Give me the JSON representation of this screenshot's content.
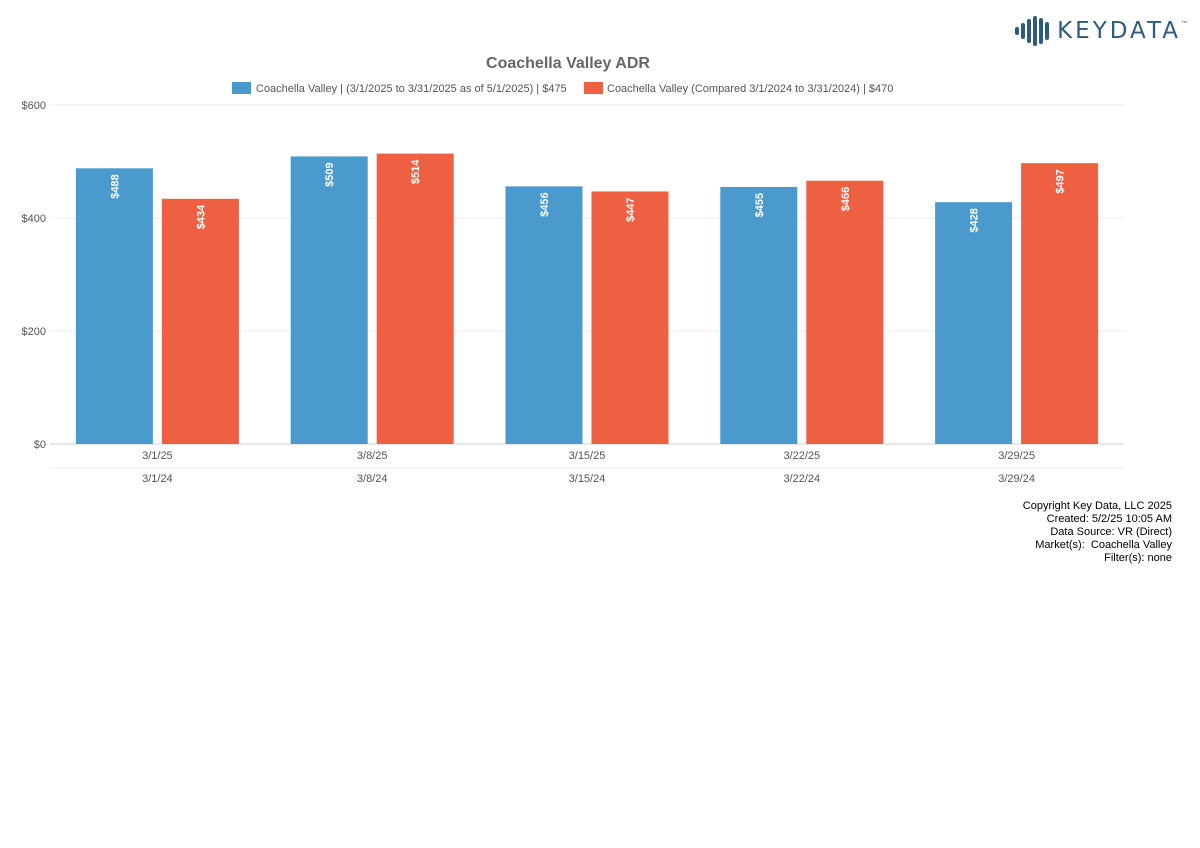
{
  "brand": {
    "name": "KEYDATA",
    "tm": "™",
    "color": "#2e5a80"
  },
  "colors": {
    "current": "#4a9acd",
    "compare": "#ef5f41",
    "grid": "#ececec",
    "axis": "#d0d0d0"
  },
  "chart_data": {
    "type": "bar",
    "title": "Coachella Valley ADR",
    "xlabel": "",
    "ylabel": "",
    "ylim": [
      0,
      600
    ],
    "yticks": [
      0,
      200,
      400,
      600
    ],
    "ytick_labels": [
      "$0",
      "$200",
      "$400",
      "$600"
    ],
    "grid": true,
    "legend_position": "top",
    "categories": [
      "3/1/25",
      "3/8/25",
      "3/15/25",
      "3/22/25",
      "3/29/25"
    ],
    "secondary_categories": [
      "3/1/24",
      "3/8/24",
      "3/15/24",
      "3/22/24",
      "3/29/24"
    ],
    "series": [
      {
        "name": "Coachella Valley | (3/1/2025 to 3/31/2025 as of 5/1/2025) | $475",
        "values": [
          488,
          509,
          456,
          455,
          428
        ],
        "labels": [
          "$488",
          "$509",
          "$456",
          "$455",
          "$428"
        ],
        "color": "#4a9acd"
      },
      {
        "name": "Coachella Valley (Compared 3/1/2024 to 3/31/2024) | $470",
        "values": [
          434,
          514,
          447,
          466,
          497
        ],
        "labels": [
          "$434",
          "$514",
          "$447",
          "$466",
          "$497"
        ],
        "color": "#ef5f41"
      }
    ]
  },
  "footer": {
    "copyright": "Copyright Key Data, LLC 2025",
    "created": "Created: 5/2/25 10:05 AM",
    "source": "Data Source: VR (Direct)",
    "markets": "Market(s):  Coachella Valley",
    "filters": "Filter(s): none"
  }
}
